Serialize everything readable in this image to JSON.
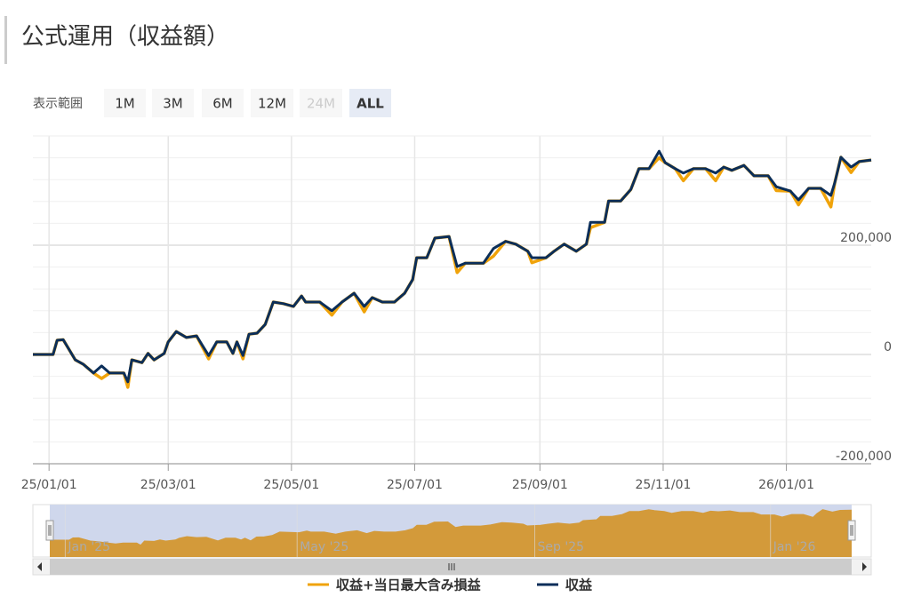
{
  "header": {
    "title": "公式運用（収益額）"
  },
  "range_selector": {
    "label": "表示範囲",
    "buttons": [
      "1M",
      "3M",
      "6M",
      "12M",
      "24M",
      "ALL"
    ],
    "selected": 5,
    "disabled": [
      4
    ]
  },
  "chart_data": {
    "type": "line",
    "x": [
      "24/12/24",
      "25/01/03",
      "25/01/05",
      "25/01/08",
      "25/01/14",
      "25/01/18",
      "25/01/23",
      "25/01/27",
      "25/01/31",
      "25/02/07",
      "25/02/09",
      "25/02/11",
      "25/02/16",
      "25/02/19",
      "25/02/22",
      "25/02/27",
      "25/03/01",
      "25/03/05",
      "25/03/10",
      "25/03/15",
      "25/03/21",
      "25/03/25",
      "25/03/30",
      "25/04/02",
      "25/04/04",
      "25/04/07",
      "25/04/10",
      "25/04/14",
      "25/04/18",
      "25/04/22",
      "25/04/27",
      "25/05/02",
      "25/05/06",
      "25/05/08",
      "25/05/15",
      "25/05/21",
      "25/05/26",
      "25/06/01",
      "25/06/06",
      "25/06/10",
      "25/06/15",
      "25/06/21",
      "25/06/26",
      "25/06/30",
      "25/07/02",
      "25/07/07",
      "25/07/11",
      "25/07/18",
      "25/07/22",
      "25/07/26",
      "25/08/04",
      "25/08/09",
      "25/08/15",
      "25/08/20",
      "25/08/26",
      "25/08/28",
      "25/09/04",
      "25/09/08",
      "25/09/13",
      "25/09/19",
      "25/09/24",
      "25/09/26",
      "25/10/03",
      "25/10/05",
      "25/10/11",
      "25/10/16",
      "25/10/20",
      "25/10/25",
      "25/10/30",
      "25/11/02",
      "25/11/07",
      "25/11/11",
      "25/11/16",
      "25/11/22",
      "25/11/27",
      "25/12/01",
      "25/12/05",
      "25/12/11",
      "25/12/16",
      "25/12/23",
      "25/12/27",
      "26/01/03",
      "26/01/07",
      "26/01/12",
      "26/01/18",
      "26/01/23",
      "26/01/25",
      "26/01/28",
      "26/02/02",
      "26/02/06",
      "26/02/12"
    ],
    "series": [
      {
        "name": "収益+当日最大含み損益",
        "color": "#f0a30a",
        "values": [
          0,
          0,
          26000,
          27000,
          -10000,
          -18000,
          -34000,
          -44000,
          -34000,
          -34000,
          -60000,
          -10000,
          -15000,
          2000,
          -10000,
          2000,
          23000,
          42000,
          31000,
          34000,
          -8000,
          23000,
          23000,
          2000,
          23000,
          -8000,
          37000,
          39000,
          55000,
          96000,
          93000,
          88000,
          107000,
          96000,
          96000,
          72000,
          96000,
          112000,
          78000,
          104000,
          96000,
          96000,
          112000,
          137000,
          177000,
          177000,
          213000,
          216000,
          150000,
          167000,
          167000,
          180000,
          207000,
          202000,
          189000,
          168000,
          177000,
          189000,
          202000,
          189000,
          202000,
          232000,
          242000,
          281000,
          281000,
          302000,
          340000,
          340000,
          360000,
          351000,
          340000,
          318000,
          340000,
          340000,
          318000,
          343000,
          337000,
          346000,
          327000,
          327000,
          300000,
          299000,
          274000,
          304000,
          304000,
          270000,
          315000,
          361000,
          333000,
          353000,
          356000
        ]
      },
      {
        "name": "収益",
        "color": "#0b2e59",
        "values": [
          0,
          0,
          26000,
          27000,
          -10000,
          -18000,
          -34000,
          -21000,
          -34000,
          -34000,
          -50000,
          -10000,
          -15000,
          2000,
          -10000,
          2000,
          23000,
          42000,
          31000,
          34000,
          -2000,
          23000,
          23000,
          2000,
          23000,
          -2000,
          37000,
          39000,
          55000,
          96000,
          93000,
          88000,
          107000,
          96000,
          96000,
          80000,
          96000,
          112000,
          88000,
          104000,
          96000,
          96000,
          112000,
          137000,
          177000,
          177000,
          213000,
          216000,
          161000,
          167000,
          167000,
          194000,
          207000,
          202000,
          189000,
          177000,
          177000,
          189000,
          202000,
          189000,
          202000,
          242000,
          242000,
          281000,
          281000,
          302000,
          340000,
          340000,
          372000,
          351000,
          340000,
          332000,
          340000,
          340000,
          332000,
          343000,
          337000,
          346000,
          327000,
          327000,
          307000,
          299000,
          283000,
          304000,
          304000,
          291000,
          315000,
          361000,
          343000,
          353000,
          356000
        ]
      }
    ],
    "xlim": [
      "24/12/24",
      "26/02/12"
    ],
    "xticks": [
      "25/01/01",
      "25/03/01",
      "25/05/01",
      "25/07/01",
      "25/09/01",
      "25/11/01",
      "26/01/01"
    ],
    "ylim": [
      -200000,
      400000
    ],
    "yticks": [
      {
        "value": -200000,
        "label": "-200,000"
      },
      0,
      {
        "value": 200000,
        "label": "200,000"
      }
    ],
    "y_minor_tick_interval": 40000,
    "grid": true,
    "legend": "bottom",
    "navigator": {
      "color": "#d39a3a",
      "ticks": [
        {
          "value": "25/01/01",
          "label": "Jan '25"
        },
        {
          "value": "25/05/01",
          "label": "May '25"
        },
        {
          "value": "25/09/01",
          "label": "Sep '25"
        },
        {
          "value": "26/01/01",
          "label": "Jan '26"
        }
      ]
    }
  }
}
